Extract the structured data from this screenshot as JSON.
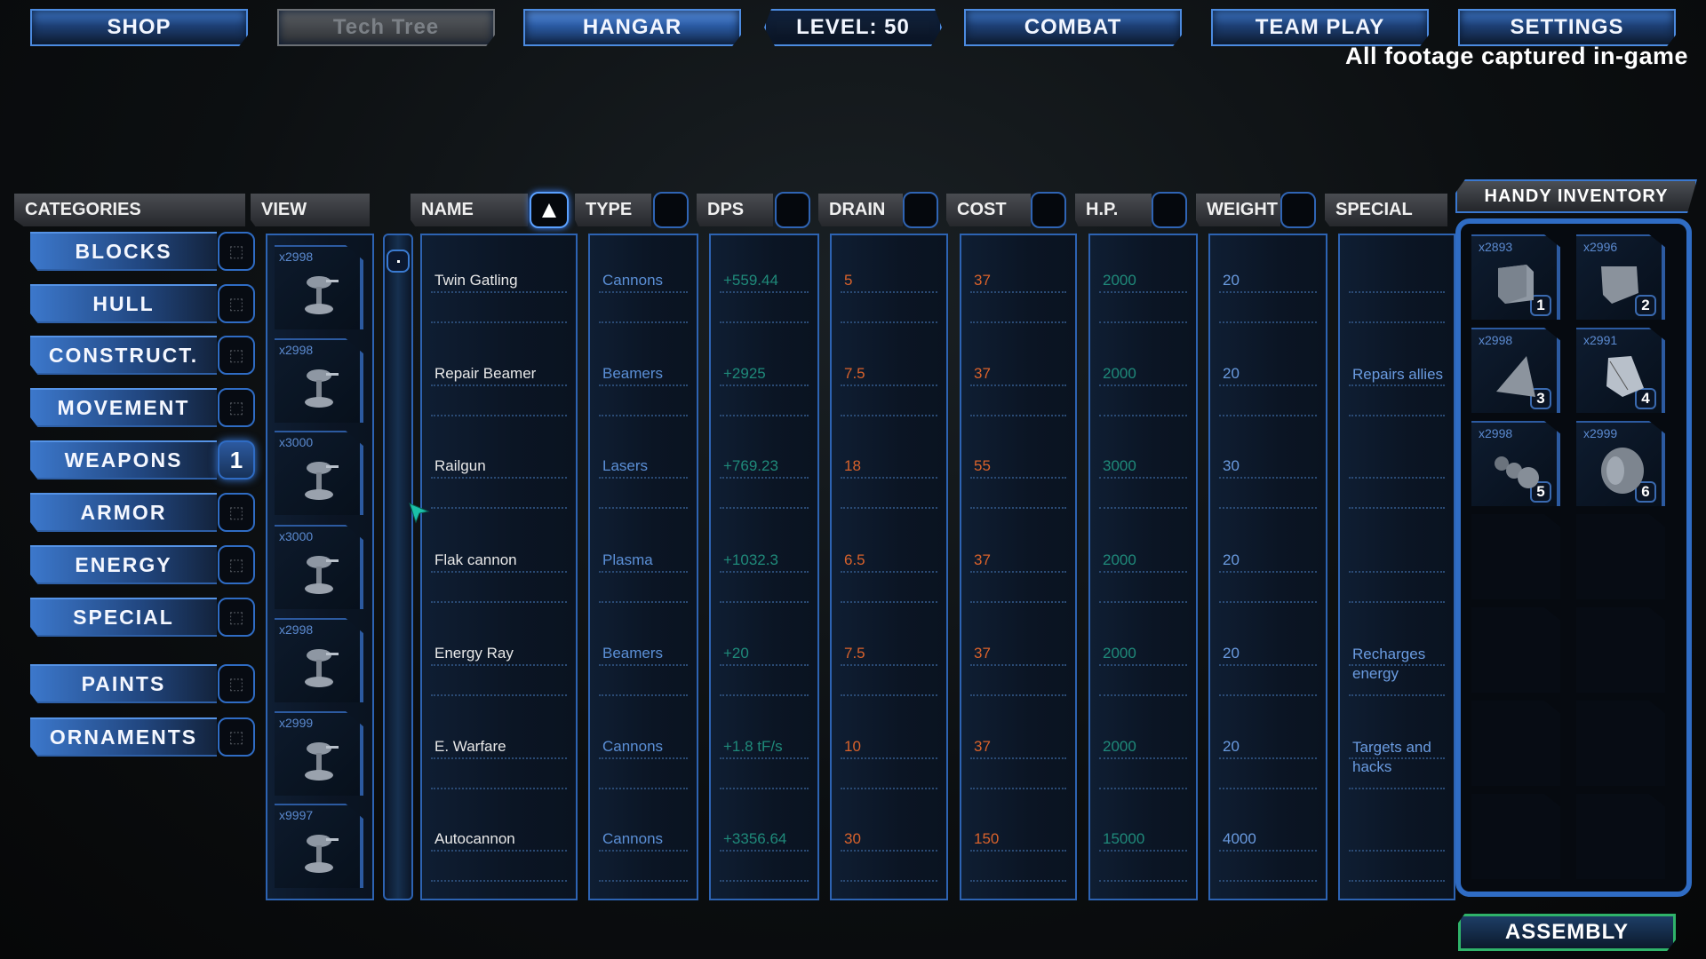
{
  "top_nav": {
    "shop": "SHOP",
    "tech_tree": "Tech Tree",
    "hangar": "HANGAR",
    "level": "LEVEL: 50",
    "combat": "COMBAT",
    "team_play": "TEAM PLAY",
    "settings": "SETTINGS"
  },
  "footage_note": "All footage captured in-game",
  "headers": {
    "categories": "CATEGORIES",
    "view": "VIEW",
    "name": "NAME",
    "type": "TYPE",
    "dps": "DPS",
    "drain": "DRAIN",
    "cost": "COST",
    "hp": "H.P.",
    "weight": "WEIGHT",
    "special": "SPECIAL"
  },
  "sort_icon": "triangle-up-icon",
  "categories": [
    {
      "label": "BLOCKS",
      "badge": ""
    },
    {
      "label": "HULL",
      "badge": ""
    },
    {
      "label": "CONSTRUCT.",
      "badge": ""
    },
    {
      "label": "MOVEMENT",
      "badge": ""
    },
    {
      "label": "WEAPONS",
      "badge": "1",
      "active": true
    },
    {
      "label": "ARMOR",
      "badge": ""
    },
    {
      "label": "ENERGY",
      "badge": ""
    },
    {
      "label": "SPECIAL",
      "badge": ""
    },
    {
      "label": "PAINTS",
      "badge": ""
    },
    {
      "label": "ORNAMENTS",
      "badge": ""
    }
  ],
  "items": [
    {
      "count": "x2998",
      "name": "Twin Gatling",
      "type": "Cannons",
      "dps": "+559.44",
      "drain": "5",
      "cost": "37",
      "hp": "2000",
      "weight": "20",
      "special": ""
    },
    {
      "count": "x2998",
      "name": "Repair Beamer",
      "type": "Beamers",
      "dps": "+2925",
      "drain": "7.5",
      "cost": "37",
      "hp": "2000",
      "weight": "20",
      "special": "Repairs allies"
    },
    {
      "count": "x3000",
      "name": "Railgun",
      "type": "Lasers",
      "dps": "+769.23",
      "drain": "18",
      "cost": "55",
      "hp": "3000",
      "weight": "30",
      "special": ""
    },
    {
      "count": "x3000",
      "name": "Flak cannon",
      "type": "Plasma",
      "dps": "+1032.3",
      "drain": "6.5",
      "cost": "37",
      "hp": "2000",
      "weight": "20",
      "special": ""
    },
    {
      "count": "x2998",
      "name": "Energy Ray",
      "type": "Beamers",
      "dps": "+20",
      "drain": "7.5",
      "cost": "37",
      "hp": "2000",
      "weight": "20",
      "special": "Recharges energy"
    },
    {
      "count": "x2999",
      "name": "E. Warfare",
      "type": "Cannons",
      "dps": "+1.8 tF/s",
      "drain": "10",
      "cost": "37",
      "hp": "2000",
      "weight": "20",
      "special": "Targets and hacks"
    },
    {
      "count": "x9997",
      "name": "Autocannon",
      "type": "Cannons",
      "dps": "+3356.64",
      "drain": "30",
      "cost": "150",
      "hp": "15000",
      "weight": "4000",
      "special": ""
    }
  ],
  "inventory": {
    "title": "HANDY INVENTORY",
    "slots": [
      {
        "count": "x2893",
        "number": "1",
        "shape": "cube"
      },
      {
        "count": "x2996",
        "number": "2",
        "shape": "cube-rounded"
      },
      {
        "count": "x2998",
        "number": "3",
        "shape": "pyramid"
      },
      {
        "count": "x2991",
        "number": "4",
        "shape": "wedge"
      },
      {
        "count": "x2998",
        "number": "5",
        "shape": "wheels"
      },
      {
        "count": "x2999",
        "number": "6",
        "shape": "wheel"
      },
      {},
      {},
      {},
      {},
      {},
      {},
      {},
      {}
    ]
  },
  "assembly": "ASSEMBLY",
  "colors": {
    "accent": "#3c78cc",
    "name": "#e8e8e8",
    "type": "#5b8fd6",
    "dps": "#1f8a7a",
    "drain": "#d9622b",
    "cost": "#d9622b",
    "hp": "#1f8a7a",
    "weight": "#6a9be0",
    "special": "#6a9be0",
    "assembly_border": "#2fb36a"
  }
}
